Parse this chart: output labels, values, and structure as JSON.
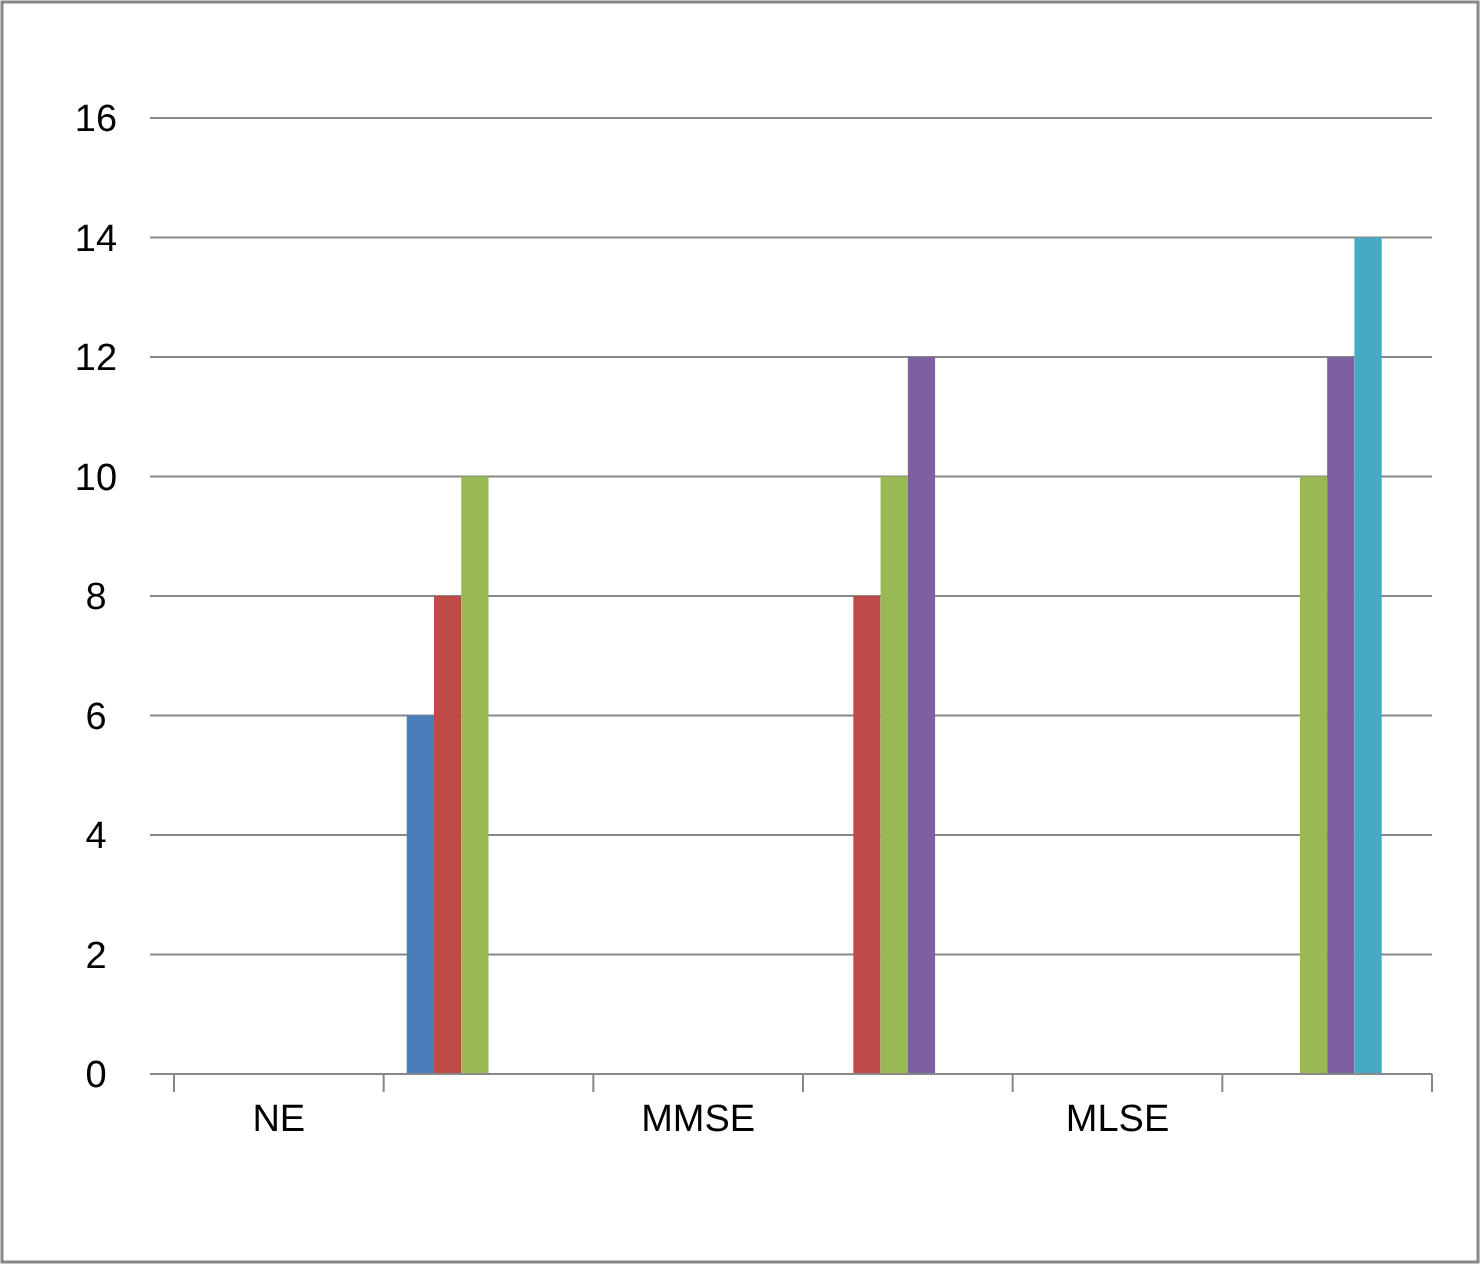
{
  "chart_data": {
    "type": "bar",
    "categories": [
      "NE",
      null,
      "MMSE",
      null,
      "MLSE",
      null
    ],
    "series": [
      {
        "color": "#4a7ebb",
        "values": [
          null,
          6,
          null,
          null,
          null,
          null
        ]
      },
      {
        "color": "#be4b48",
        "values": [
          null,
          8,
          null,
          8,
          null,
          null
        ]
      },
      {
        "color": "#98b954",
        "values": [
          null,
          10,
          null,
          10,
          null,
          10
        ]
      },
      {
        "color": "#7d60a0",
        "values": [
          null,
          null,
          null,
          12,
          null,
          12
        ]
      },
      {
        "color": "#46aac5",
        "values": [
          null,
          null,
          null,
          null,
          null,
          14
        ]
      }
    ],
    "ylim": [
      0,
      16
    ],
    "yticks": [
      0,
      2,
      4,
      6,
      8,
      10,
      12,
      14,
      16
    ],
    "grid": "y"
  }
}
